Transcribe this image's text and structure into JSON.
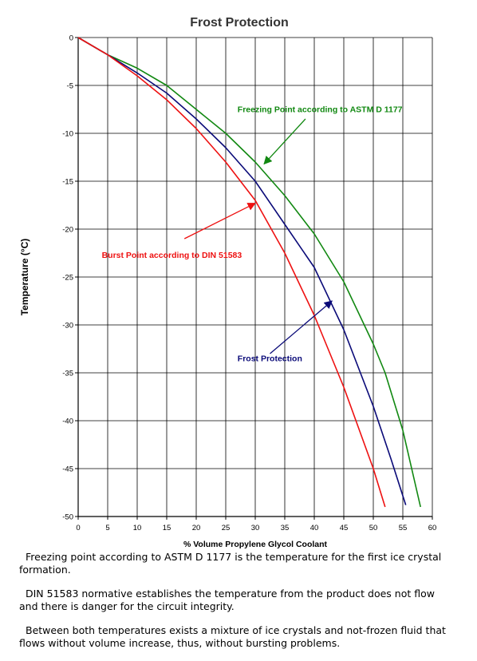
{
  "chart_data": {
    "type": "line",
    "title": "Frost Protection",
    "xlabel": "% Volume Propylene Glycol Coolant",
    "ylabel": "Temperature (°C)",
    "xlim": [
      0,
      60
    ],
    "ylim": [
      -50,
      0
    ],
    "xticks": [
      0,
      5,
      10,
      15,
      20,
      25,
      30,
      35,
      40,
      45,
      50,
      55,
      60
    ],
    "yticks": [
      0,
      -5,
      -10,
      -15,
      -20,
      -25,
      -30,
      -35,
      -40,
      -45,
      -50
    ],
    "grid": true,
    "series": [
      {
        "name": "Freezing Point according to ASTM D 1177",
        "color": "#118811",
        "x": [
          0,
          5,
          10,
          15,
          20,
          25,
          30,
          35,
          40,
          45,
          50,
          52,
          55,
          58
        ],
        "y": [
          0,
          -1.8,
          -3.2,
          -5.0,
          -7.5,
          -10.0,
          -13.0,
          -16.5,
          -20.5,
          -25.5,
          -32.0,
          -35.0,
          -41.0,
          -49.0
        ]
      },
      {
        "name": "Frost Protection",
        "color": "#0a0a78",
        "x": [
          0,
          5,
          10,
          15,
          20,
          25,
          30,
          35,
          40,
          45,
          50,
          53,
          55.5
        ],
        "y": [
          0,
          -1.8,
          -3.7,
          -5.8,
          -8.5,
          -11.5,
          -15.0,
          -19.5,
          -24.0,
          -30.5,
          -38.5,
          -44.0,
          -48.8
        ]
      },
      {
        "name": "Burst Point according to DIN 51583",
        "color": "#ee1111",
        "x": [
          0,
          5,
          10,
          15,
          20,
          25,
          30,
          35,
          40,
          45,
          50,
          52
        ],
        "y": [
          0,
          -1.8,
          -4.0,
          -6.5,
          -9.5,
          -13.0,
          -17.0,
          -22.5,
          -29.0,
          -36.5,
          -45.0,
          -49.0
        ]
      }
    ],
    "annotations": [
      {
        "text": "Freezing Point according to ASTM D 1177",
        "color": "#118811",
        "text_x": 27,
        "text_y": -7.8,
        "arrow_from": [
          38.5,
          -8.5
        ],
        "arrow_to": [
          31.5,
          -13.2
        ]
      },
      {
        "text": "Frost Protection",
        "color": "#0a0a78",
        "text_x": 27,
        "text_y": -33.8,
        "arrow_from": [
          32.5,
          -33.0
        ],
        "arrow_to": [
          43.0,
          -27.5
        ]
      },
      {
        "text": "Burst Point according to DIN 51583",
        "color": "#ee1111",
        "text_x": 4,
        "text_y": -23.0,
        "arrow_from": [
          18,
          -21.0
        ],
        "arrow_to": [
          30,
          -17.3
        ]
      }
    ]
  },
  "notes": [
    "Freezing point according to ASTM D 1177 is the temperature for the first ice crystal formation.",
    "DIN 51583 normative establishes the temperature from the product does not flow and there is danger for the circuit integrity.",
    "Between both temperatures exists a mixture of ice crystals and not-frozen fluid that flows without volume increase, thus, without bursting problems."
  ]
}
